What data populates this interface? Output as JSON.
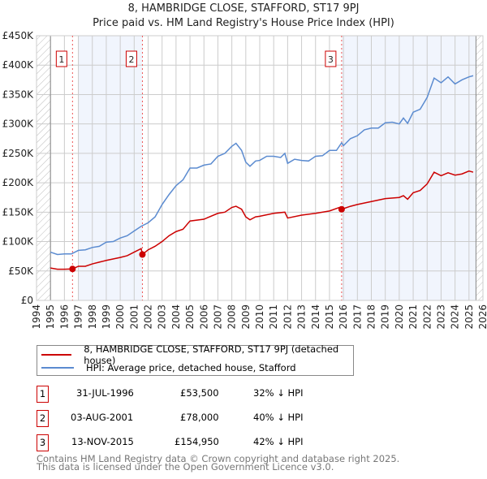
{
  "chart_data": {
    "type": "line",
    "title": "8, HAMBRIDGE CLOSE, STAFFORD, ST17 9PJ",
    "subtitle": "Price paid vs. HM Land Registry's House Price Index (HPI)",
    "xlim": [
      1994,
      2026
    ],
    "ylim": [
      0,
      450000
    ],
    "y_ticks": [
      0,
      50000,
      100000,
      150000,
      200000,
      250000,
      300000,
      350000,
      400000,
      450000
    ],
    "y_tick_labels": [
      "£0",
      "£50K",
      "£100K",
      "£150K",
      "£200K",
      "£250K",
      "£300K",
      "£350K",
      "£400K",
      "£450K"
    ],
    "x_tick_labels": [
      "1994",
      "1995",
      "1996",
      "1997",
      "1998",
      "1999",
      "2000",
      "2001",
      "2002",
      "2003",
      "2004",
      "2005",
      "2006",
      "2007",
      "2008",
      "2009",
      "2010",
      "2011",
      "2012",
      "2013",
      "2014",
      "2015",
      "2016",
      "2017",
      "2018",
      "2019",
      "2020",
      "2021",
      "2022",
      "2023",
      "2024",
      "2025",
      "2026"
    ],
    "grid": true,
    "series": [
      {
        "name": "8, HAMBRIDGE CLOSE, STAFFORD, ST17 9PJ (detached house)",
        "color": "#cc0000",
        "x": [
          1995,
          1995.5,
          1996,
          1996.58,
          1997,
          1997.5,
          1998,
          1998.5,
          1999,
          2000,
          2000.5,
          2001,
          2001.5,
          2001.59,
          2002,
          2002.5,
          2003,
          2003.5,
          2004,
          2004.5,
          2005,
          2006,
          2007,
          2007.5,
          2008,
          2008.3,
          2008.7,
          2009,
          2009.3,
          2009.7,
          2010,
          2011,
          2011.8,
          2012,
          2013,
          2014,
          2015,
          2015.7,
          2015.87,
          2016.5,
          2017,
          2018,
          2019,
          2020,
          2020.3,
          2020.6,
          2021,
          2021.5,
          2022,
          2022.5,
          2023,
          2023.5,
          2024,
          2024.5,
          2025,
          2025.3
        ],
        "y": [
          55000,
          53000,
          53000,
          53500,
          58000,
          58000,
          62000,
          65000,
          68000,
          73000,
          76000,
          82000,
          88000,
          78000,
          86000,
          92000,
          100000,
          110000,
          117000,
          121000,
          135000,
          138000,
          148000,
          150000,
          158000,
          160000,
          155000,
          142000,
          137000,
          142000,
          143000,
          148000,
          150000,
          140000,
          145000,
          148000,
          152000,
          158000,
          154950,
          160000,
          163000,
          168000,
          173000,
          175000,
          178000,
          172000,
          183000,
          187000,
          198000,
          218000,
          212000,
          217000,
          213000,
          215000,
          220000,
          218000
        ]
      },
      {
        "name": "HPI: Average price, detached house, Stafford",
        "color": "#5b8bd0",
        "x": [
          1995,
          1995.5,
          1996,
          1996.5,
          1997,
          1997.5,
          1998,
          1998.5,
          1999,
          1999.5,
          2000,
          2000.5,
          2001,
          2001.5,
          2002,
          2002.5,
          2003,
          2003.5,
          2004,
          2004.5,
          2005,
          2005.5,
          2006,
          2006.5,
          2007,
          2007.5,
          2008,
          2008.3,
          2008.7,
          2009,
          2009.3,
          2009.7,
          2010,
          2010.5,
          2011,
          2011.5,
          2011.8,
          2012,
          2012.5,
          2013,
          2013.5,
          2014,
          2014.5,
          2015,
          2015.5,
          2015.87,
          2016,
          2016.5,
          2017,
          2017.5,
          2018,
          2018.5,
          2019,
          2019.5,
          2020,
          2020.3,
          2020.6,
          2021,
          2021.5,
          2022,
          2022.5,
          2023,
          2023.5,
          2024,
          2024.5,
          2025,
          2025.3
        ],
        "y": [
          82000,
          78000,
          79000,
          79000,
          85000,
          86000,
          90000,
          92000,
          99000,
          100000,
          106000,
          110000,
          118000,
          126000,
          132000,
          142000,
          163000,
          180000,
          195000,
          205000,
          225000,
          225000,
          230000,
          232000,
          245000,
          250000,
          262000,
          267000,
          255000,
          235000,
          228000,
          237000,
          238000,
          245000,
          245000,
          243000,
          250000,
          233000,
          240000,
          238000,
          237000,
          245000,
          246000,
          255000,
          255000,
          268000,
          263000,
          275000,
          280000,
          290000,
          293000,
          293000,
          302000,
          303000,
          300000,
          310000,
          301000,
          320000,
          325000,
          345000,
          378000,
          370000,
          380000,
          368000,
          375000,
          380000,
          382000
        ]
      }
    ],
    "sales": [
      {
        "label": "1",
        "x": 1996.58,
        "y": 53500,
        "date": "31-JUL-1996",
        "price": "£53,500",
        "hpi": "32% ↓ HPI"
      },
      {
        "label": "2",
        "x": 2001.59,
        "y": 78000,
        "date": "03-AUG-2001",
        "price": "£78,000",
        "hpi": "40% ↓ HPI"
      },
      {
        "label": "3",
        "x": 2015.87,
        "y": 154950,
        "date": "13-NOV-2015",
        "price": "£154,950",
        "hpi": "42% ↓ HPI"
      }
    ],
    "shaded_ranges": [
      [
        1997,
        2001.59
      ],
      [
        2015.87,
        2025.5
      ]
    ],
    "hatched_ranges": [
      [
        1994,
        1995
      ],
      [
        2025.5,
        2026
      ]
    ]
  },
  "footer": [
    "Contains HM Land Registry data © Crown copyright and database right 2025.",
    "This data is licensed under the Open Government Licence v3.0."
  ]
}
